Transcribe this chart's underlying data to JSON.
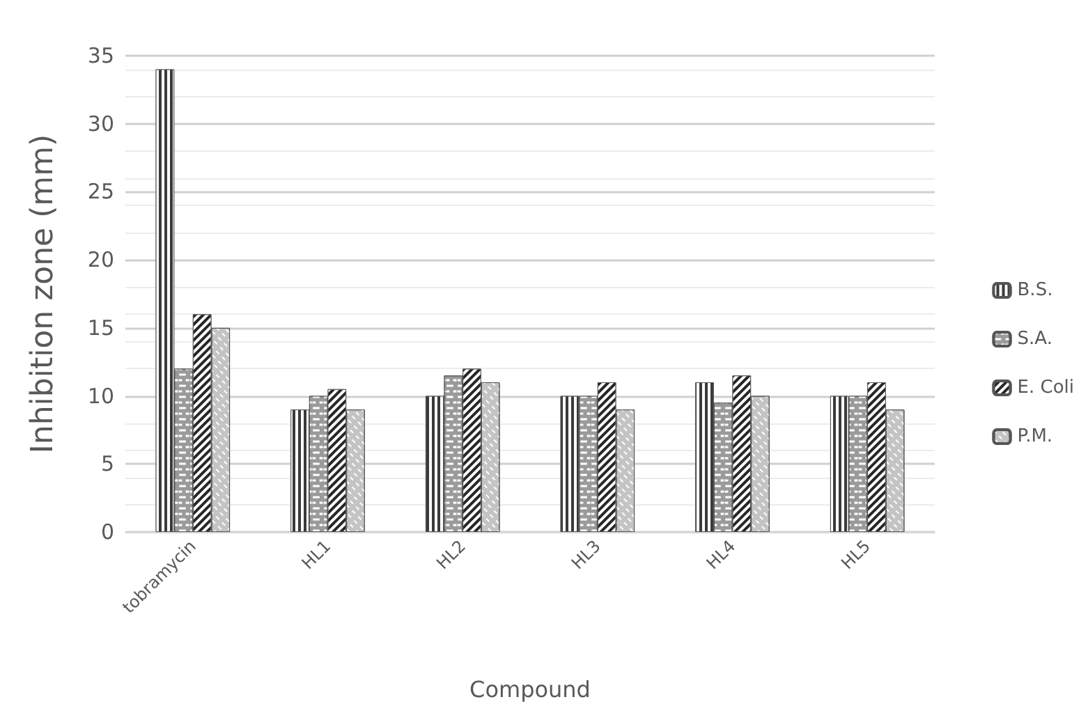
{
  "chart_data": {
    "type": "bar",
    "xlabel": "Compound",
    "ylabel": "Inhibition zone (mm)",
    "categories": [
      "tobramycin",
      "HL1",
      "HL2",
      "HL3",
      "HL4",
      "HL5"
    ],
    "series": [
      {
        "name": "B.S.",
        "color": "#3a3a3a",
        "values": [
          34,
          9,
          10,
          10,
          11,
          10
        ]
      },
      {
        "name": "S.A.",
        "color": "#9a9a9a",
        "values": [
          12,
          10,
          11.5,
          10,
          9.5,
          10
        ]
      },
      {
        "name": "E. Coli",
        "color": "#262626",
        "values": [
          16,
          10.5,
          12,
          11,
          11.5,
          11
        ]
      },
      {
        "name": "P.M.",
        "color": "#c4c4c4",
        "values": [
          15,
          9,
          11,
          9,
          10,
          9
        ]
      }
    ],
    "ylim": [
      0,
      35
    ],
    "yticks": [
      0,
      5,
      10,
      15,
      20,
      25,
      30,
      35
    ],
    "grid": "y",
    "legend": "right"
  }
}
